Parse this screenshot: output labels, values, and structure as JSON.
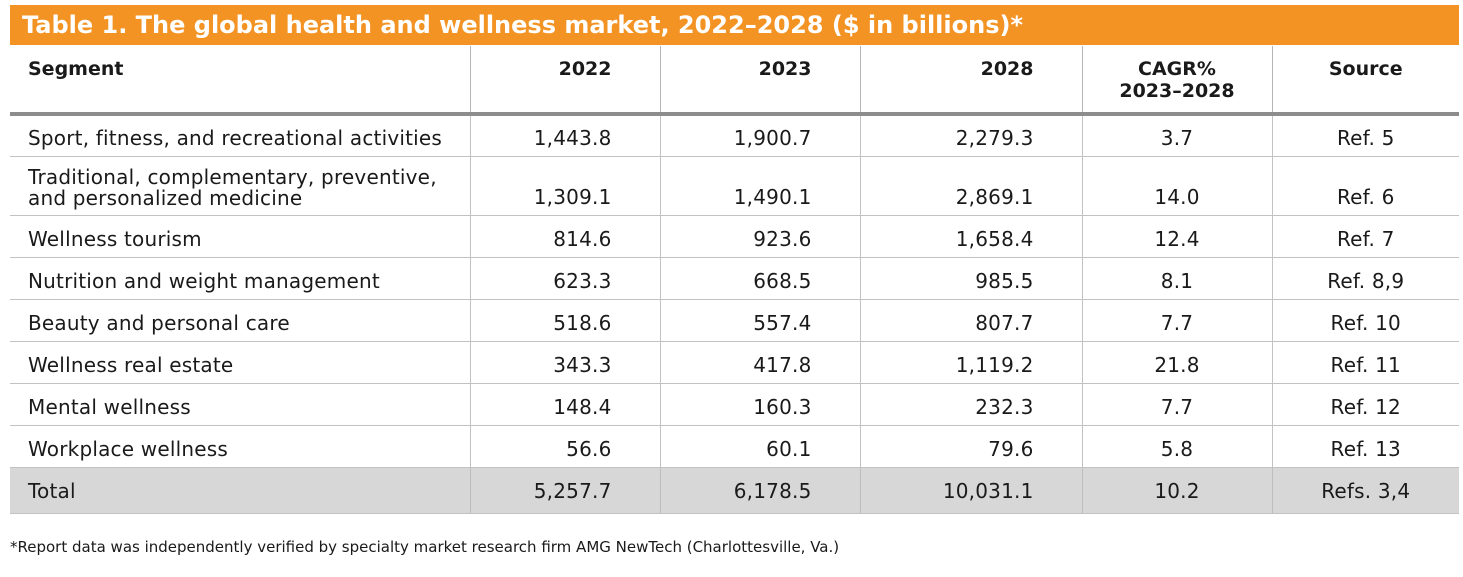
{
  "title": "Table 1. The global health and wellness market, 2022–2028 ($ in billions)*",
  "headers": {
    "segment": "Segment",
    "y2022": "2022",
    "y2023": "2023",
    "y2028": "2028",
    "cagr_line1": "CAGR%",
    "cagr_line2": "2023–2028",
    "source": "Source"
  },
  "rows": [
    {
      "segment": "Sport, fitness, and recreational activities",
      "y2022": "1,443.8",
      "y2023": "1,900.7",
      "y2028": "2,279.3",
      "cagr": "3.7",
      "source": "Ref. 5"
    },
    {
      "segment": "Traditional, complementary, preventive, and personalized medicine",
      "y2022": "1,309.1",
      "y2023": "1,490.1",
      "y2028": "2,869.1",
      "cagr": "14.0",
      "source": "Ref. 6"
    },
    {
      "segment": "Wellness tourism",
      "y2022": "814.6",
      "y2023": "923.6",
      "y2028": "1,658.4",
      "cagr": "12.4",
      "source": "Ref. 7"
    },
    {
      "segment": "Nutrition and weight management",
      "y2022": "623.3",
      "y2023": "668.5",
      "y2028": "985.5",
      "cagr": "8.1",
      "source": "Ref. 8,9"
    },
    {
      "segment": "Beauty and personal care",
      "y2022": "518.6",
      "y2023": "557.4",
      "y2028": "807.7",
      "cagr": "7.7",
      "source": "Ref. 10"
    },
    {
      "segment": "Wellness real estate",
      "y2022": "343.3",
      "y2023": "417.8",
      "y2028": "1,119.2",
      "cagr": "21.8",
      "source": "Ref. 11"
    },
    {
      "segment": "Mental wellness",
      "y2022": "148.4",
      "y2023": "160.3",
      "y2028": "232.3",
      "cagr": "7.7",
      "source": "Ref. 12"
    },
    {
      "segment": "Workplace wellness",
      "y2022": "56.6",
      "y2023": "60.1",
      "y2028": "79.6",
      "cagr": "5.8",
      "source": "Ref. 13"
    }
  ],
  "total": {
    "segment": "Total",
    "y2022": "5,257.7",
    "y2023": "6,178.5",
    "y2028": "10,031.1",
    "cagr": "10.2",
    "source": "Refs. 3,4"
  },
  "footnote": "*Report data was independently verified by specialty market research firm AMG NewTech (Charlottesville, Va.)",
  "colors": {
    "title_bar": "#F39324",
    "total_row": "#d7d7d7"
  }
}
